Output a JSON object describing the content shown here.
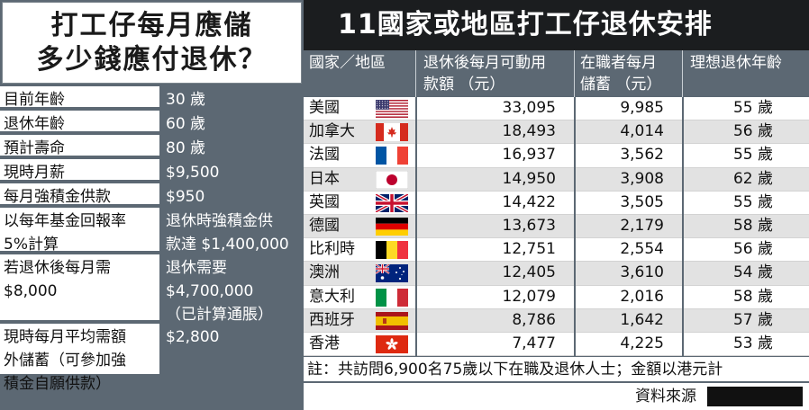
{
  "left": {
    "title_line1": "打工仔每月應儲",
    "title_line2": "多少錢應付退休？",
    "rows": [
      {
        "label": [
          "目前年齡"
        ],
        "value": [
          "30 歲"
        ]
      },
      {
        "label": [
          "退休年齡"
        ],
        "value": [
          "60 歲"
        ]
      },
      {
        "label": [
          "預計壽命"
        ],
        "value": [
          "80 歲"
        ]
      },
      {
        "label": [
          "現時月薪"
        ],
        "value": [
          "$9,500"
        ]
      },
      {
        "label": [
          "每月強積金供款"
        ],
        "value": [
          "$950"
        ]
      },
      {
        "label": [
          "以每年基金回報率",
          "5%計算"
        ],
        "value": [
          "退休時強積金供",
          "款達 $1,400,000"
        ]
      },
      {
        "label": [
          "若退休後每月需",
          "$8,000"
        ],
        "value": [
          "退休需要",
          "$4,700,000",
          "（已計算通脹）"
        ]
      },
      {
        "label": [
          "現時每月平均需額",
          "外儲蓄（可參加強",
          "積金自願供款）"
        ],
        "value": [
          "$2,800"
        ]
      }
    ]
  },
  "right": {
    "title": "11國家或地區打工仔退休安排",
    "headers": {
      "country": "國家／地區",
      "spend_line1": "退休後每月可動用",
      "spend_line2": "款額 （元）",
      "save_line1": "在職者每月",
      "save_line2": "儲蓄 （元）",
      "age": "理想退休年齡"
    },
    "rows": [
      {
        "name": "美國",
        "flag": "usa-flag-icon",
        "spend": "33,095",
        "save": "9,985",
        "age": "55 歲"
      },
      {
        "name": "加拿大",
        "flag": "canada-flag-icon",
        "spend": "18,493",
        "save": "4,014",
        "age": "56 歲"
      },
      {
        "name": "法國",
        "flag": "france-flag-icon",
        "spend": "16,937",
        "save": "3,562",
        "age": "55 歲"
      },
      {
        "name": "日本",
        "flag": "japan-flag-icon",
        "spend": "14,950",
        "save": "3,908",
        "age": "62 歲"
      },
      {
        "name": "英國",
        "flag": "uk-flag-icon",
        "spend": "14,422",
        "save": "3,505",
        "age": "55 歲"
      },
      {
        "name": "德國",
        "flag": "germany-flag-icon",
        "spend": "13,673",
        "save": "2,179",
        "age": "58 歲"
      },
      {
        "name": "比利時",
        "flag": "belgium-flag-icon",
        "spend": "12,751",
        "save": "2,554",
        "age": "56 歲"
      },
      {
        "name": "澳洲",
        "flag": "australia-flag-icon",
        "spend": "12,405",
        "save": "3,610",
        "age": "54 歲"
      },
      {
        "name": "意大利",
        "flag": "italy-flag-icon",
        "spend": "12,079",
        "save": "2,016",
        "age": "58 歲"
      },
      {
        "name": "西班牙",
        "flag": "spain-flag-icon",
        "spend": "8,786",
        "save": "1,642",
        "age": "57 歲"
      },
      {
        "name": "香港",
        "flag": "hongkong-flag-icon",
        "spend": "7,477",
        "save": "4,225",
        "age": "53 歲"
      }
    ],
    "note": "註：共訪問6,900名75歲以下在職及退休人士；金額以港元計",
    "source_label": "資料來源"
  },
  "colors": {
    "panel_gray": "#5c6873",
    "title_black": "#1b1d1f",
    "row_alt": "#e2e2e2"
  }
}
